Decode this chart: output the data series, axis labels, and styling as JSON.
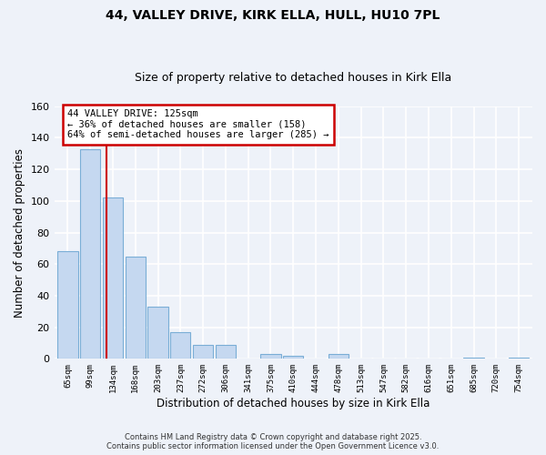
{
  "title": "44, VALLEY DRIVE, KIRK ELLA, HULL, HU10 7PL",
  "subtitle": "Size of property relative to detached houses in Kirk Ella",
  "xlabel": "Distribution of detached houses by size in Kirk Ella",
  "ylabel": "Number of detached properties",
  "bar_color": "#c5d8f0",
  "bar_edge_color": "#7aaed6",
  "background_color": "#eef2f9",
  "plot_bg_color": "#eef2f9",
  "grid_color": "#ffffff",
  "categories": [
    "65sqm",
    "99sqm",
    "134sqm",
    "168sqm",
    "203sqm",
    "237sqm",
    "272sqm",
    "306sqm",
    "341sqm",
    "375sqm",
    "410sqm",
    "444sqm",
    "478sqm",
    "513sqm",
    "547sqm",
    "582sqm",
    "616sqm",
    "651sqm",
    "685sqm",
    "720sqm",
    "754sqm"
  ],
  "values": [
    68,
    133,
    102,
    65,
    33,
    17,
    9,
    9,
    0,
    3,
    2,
    0,
    3,
    0,
    0,
    0,
    0,
    0,
    1,
    0,
    1
  ],
  "ylim": [
    0,
    160
  ],
  "yticks": [
    0,
    20,
    40,
    60,
    80,
    100,
    120,
    140,
    160
  ],
  "property_line_label": "44 VALLEY DRIVE: 125sqm",
  "annotation_line1": "← 36% of detached houses are smaller (158)",
  "annotation_line2": "64% of semi-detached houses are larger (285) →",
  "annotation_box_color": "#ffffff",
  "annotation_box_edge": "#cc0000",
  "property_line_color": "#cc0000",
  "footer_line1": "Contains HM Land Registry data © Crown copyright and database right 2025.",
  "footer_line2": "Contains public sector information licensed under the Open Government Licence v3.0."
}
